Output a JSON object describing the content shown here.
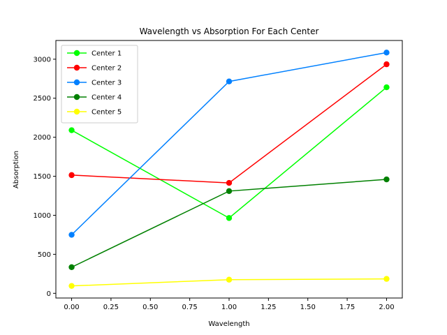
{
  "chart_data": {
    "type": "line",
    "title": "Wavelength vs Absorption For Each Center",
    "xlabel": "Wavelength",
    "ylabel": "Absorption",
    "x": [
      0,
      1,
      2
    ],
    "xlim": [
      -0.1,
      2.1
    ],
    "ylim": [
      -60,
      3240
    ],
    "xticks": [
      "0.00",
      "0.25",
      "0.50",
      "0.75",
      "1.00",
      "1.25",
      "1.50",
      "1.75",
      "2.00"
    ],
    "xtick_values": [
      0,
      0.25,
      0.5,
      0.75,
      1.0,
      1.25,
      1.5,
      1.75,
      2.0
    ],
    "yticks": [
      "0",
      "500",
      "1000",
      "1500",
      "2000",
      "2500",
      "3000"
    ],
    "ytick_values": [
      0,
      500,
      1000,
      1500,
      2000,
      2500,
      3000
    ],
    "grid": false,
    "legend_position": "top-left",
    "series": [
      {
        "name": "Center 1",
        "color": "#00ff00",
        "values": [
          2090,
          965,
          2640
        ]
      },
      {
        "name": "Center 2",
        "color": "#ff0000",
        "values": [
          1515,
          1415,
          2935
        ]
      },
      {
        "name": "Center 3",
        "color": "#0080ff",
        "values": [
          750,
          2715,
          3085
        ]
      },
      {
        "name": "Center 4",
        "color": "#008000",
        "values": [
          335,
          1310,
          1460
        ]
      },
      {
        "name": "Center 5",
        "color": "#ffff00",
        "values": [
          95,
          175,
          185
        ]
      }
    ]
  }
}
